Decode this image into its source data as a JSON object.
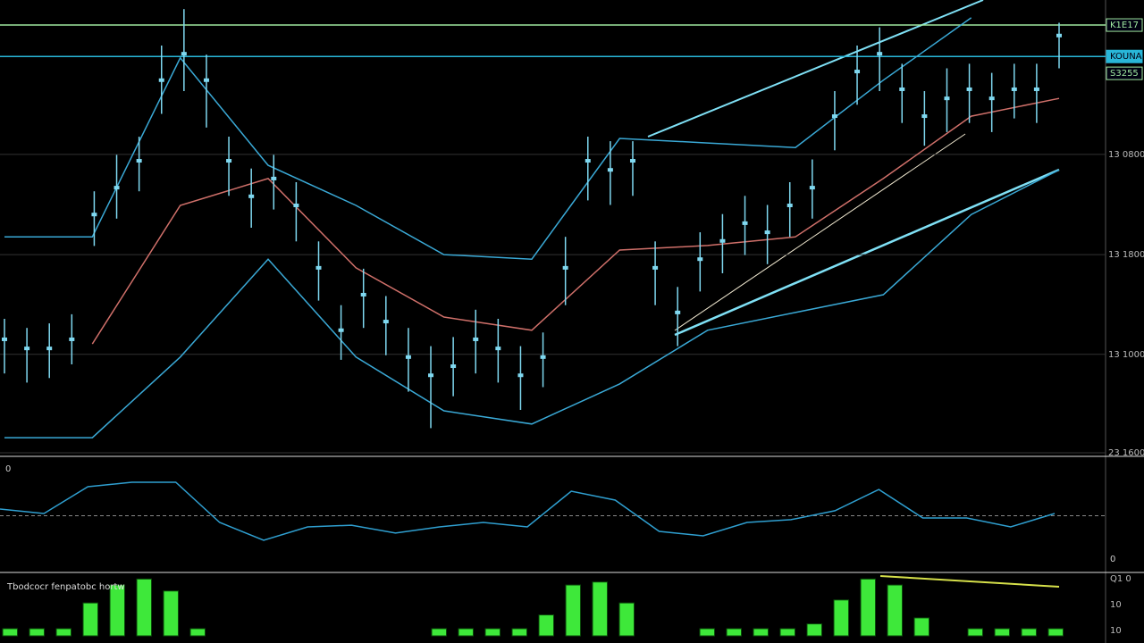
{
  "chart_data": [
    {
      "type": "candlestick",
      "ylim": [
        0,
        100
      ],
      "grid": true,
      "color": "#7fd8f0",
      "yticks": [
        {
          "value": 66.1,
          "label": "13 0800"
        },
        {
          "value": 44.1,
          "label": "13 1800"
        },
        {
          "value": 22.2,
          "label": "13 1000"
        },
        {
          "value": 0.6,
          "label": "23 1600"
        }
      ],
      "price_tags": [
        {
          "value": 94.5,
          "label": "K1E17",
          "color": "#9fe8a0",
          "line": true
        },
        {
          "value": 87.6,
          "label": "KOUNA",
          "color": "#29b6d8",
          "line": true
        },
        {
          "value": 83.9,
          "label": "S3255",
          "color": "#9fe8a0",
          "line": false
        }
      ],
      "values": [
        25.5,
        23.5,
        23.5,
        25.5,
        52.9,
        58.8,
        64.7,
        82.4,
        88.2,
        82.4,
        64.7,
        56.9,
        60.8,
        54.9,
        41.2,
        27.5,
        35.3,
        29.4,
        21.6,
        17.6,
        19.6,
        25.5,
        23.5,
        17.6,
        21.6,
        41.2,
        64.7,
        62.7,
        64.7,
        41.2,
        31.4,
        43.1,
        47.1,
        51.0,
        49.0,
        54.9,
        58.8,
        74.5,
        84.3,
        88.2,
        80.4,
        74.5,
        78.4,
        80.4,
        78.4,
        80.4,
        80.4,
        92.2
      ],
      "high": [
        30,
        28,
        29,
        31,
        58,
        66,
        70,
        90,
        98,
        88,
        70,
        63,
        66,
        60,
        47,
        33,
        41,
        35,
        28,
        24,
        26,
        32,
        30,
        24,
        27,
        48,
        70,
        69,
        69,
        47,
        37,
        49,
        53,
        57,
        55,
        60,
        65,
        80,
        90,
        94,
        86,
        80,
        85,
        86,
        84,
        86,
        86,
        95
      ],
      "low": [
        18,
        16,
        17,
        20,
        46,
        52,
        58,
        75,
        80,
        72,
        57,
        50,
        54,
        47,
        34,
        21,
        28,
        22,
        14,
        6,
        13,
        18,
        16,
        10,
        15,
        33,
        56,
        55,
        57,
        33,
        24,
        36,
        40,
        44,
        42,
        48,
        52,
        67,
        77,
        80,
        73,
        68,
        71,
        73,
        71,
        74,
        73,
        85
      ],
      "series": [
        {
          "color": "#3aa9d6",
          "values": [
            48.0,
            48.0,
            87.3,
            63.7,
            54.9,
            44.1,
            43.1,
            69.6,
            68.6,
            67.6,
            82.4,
            96.1,
            null
          ]
        },
        {
          "color": "#d0706a",
          "values": [
            null,
            24.5,
            54.9,
            60.8,
            41.2,
            30.4,
            27.5,
            45.1,
            46.1,
            48.0,
            60.8,
            74.5,
            78.4
          ]
        },
        {
          "color": "#3aa9d6",
          "values": [
            3.9,
            3.9,
            21.6,
            43.1,
            21.6,
            9.8,
            6.9,
            15.7,
            27.5,
            31.4,
            35.3,
            52.9,
            62.7
          ]
        }
      ]
    },
    {
      "type": "line",
      "ylim": [
        -1,
        1
      ],
      "color": "#2f9fd0",
      "label_top": "0",
      "label_bottom": "0",
      "values": [
        0.12,
        0.04,
        0.52,
        0.6,
        0.6,
        -0.12,
        -0.44,
        -0.2,
        -0.17,
        -0.31,
        -0.2,
        -0.12,
        -0.2,
        0.44,
        0.28,
        -0.28,
        -0.36,
        -0.12,
        -0.07,
        0.09,
        0.47,
        -0.04,
        -0.04,
        -0.2,
        0.04
      ]
    },
    {
      "type": "bar",
      "ylim": [
        0,
        1
      ],
      "color": "#3ee83a",
      "title": "Tbodcocr fenpatobc hortw",
      "side_labels": [
        "Q1 0",
        "10",
        "10"
      ],
      "values": [
        0.12,
        0.12,
        0.12,
        0.55,
        0.85,
        0.95,
        0.75,
        0.12,
        0,
        0,
        0,
        0,
        0,
        0,
        0,
        0,
        0.12,
        0.12,
        0.12,
        0.12,
        0.35,
        0.85,
        0.9,
        0.55,
        0,
        0,
        0.12,
        0.12,
        0.12,
        0.12,
        0.2,
        0.6,
        0.95,
        0.85,
        0.3,
        0,
        0.12,
        0.12,
        0.12,
        0.12
      ]
    }
  ]
}
